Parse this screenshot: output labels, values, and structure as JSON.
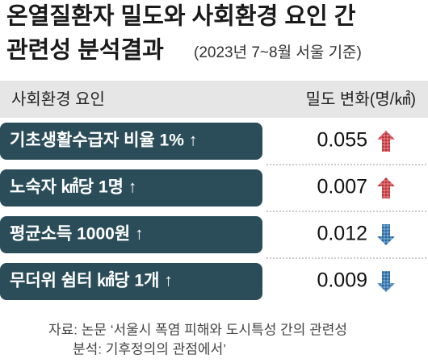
{
  "header": {
    "title_lines": [
      "온열질환자 밀도와 사회환경 요인 간",
      "관련성 분석결과"
    ],
    "subtitle": "(2023년 7~8월 서울 기준)"
  },
  "table": {
    "columns": [
      "사회환경 요인",
      "밀도 변화(명/㎢)"
    ],
    "rows": [
      {
        "label": "기초생활수급자 비율 1% ↑",
        "value": "0.055",
        "direction": "up",
        "color": "#e8474c"
      },
      {
        "label": "노숙자 ㎢당 1명 ↑",
        "value": "0.007",
        "direction": "up",
        "color": "#e8474c"
      },
      {
        "label": "평균소득 1000원 ↑",
        "value": "0.012",
        "direction": "down",
        "color": "#3a86c8"
      },
      {
        "label": "무더위 쉼터 ㎢당 1개 ↑",
        "value": "0.009",
        "direction": "down",
        "color": "#3a86c8"
      }
    ]
  },
  "source": {
    "lines": [
      "자료: 논문 ‘서울시 폭염 피해와 도시특성 간의 관련성",
      "분석: 기후정의의 관점에서’"
    ]
  }
}
